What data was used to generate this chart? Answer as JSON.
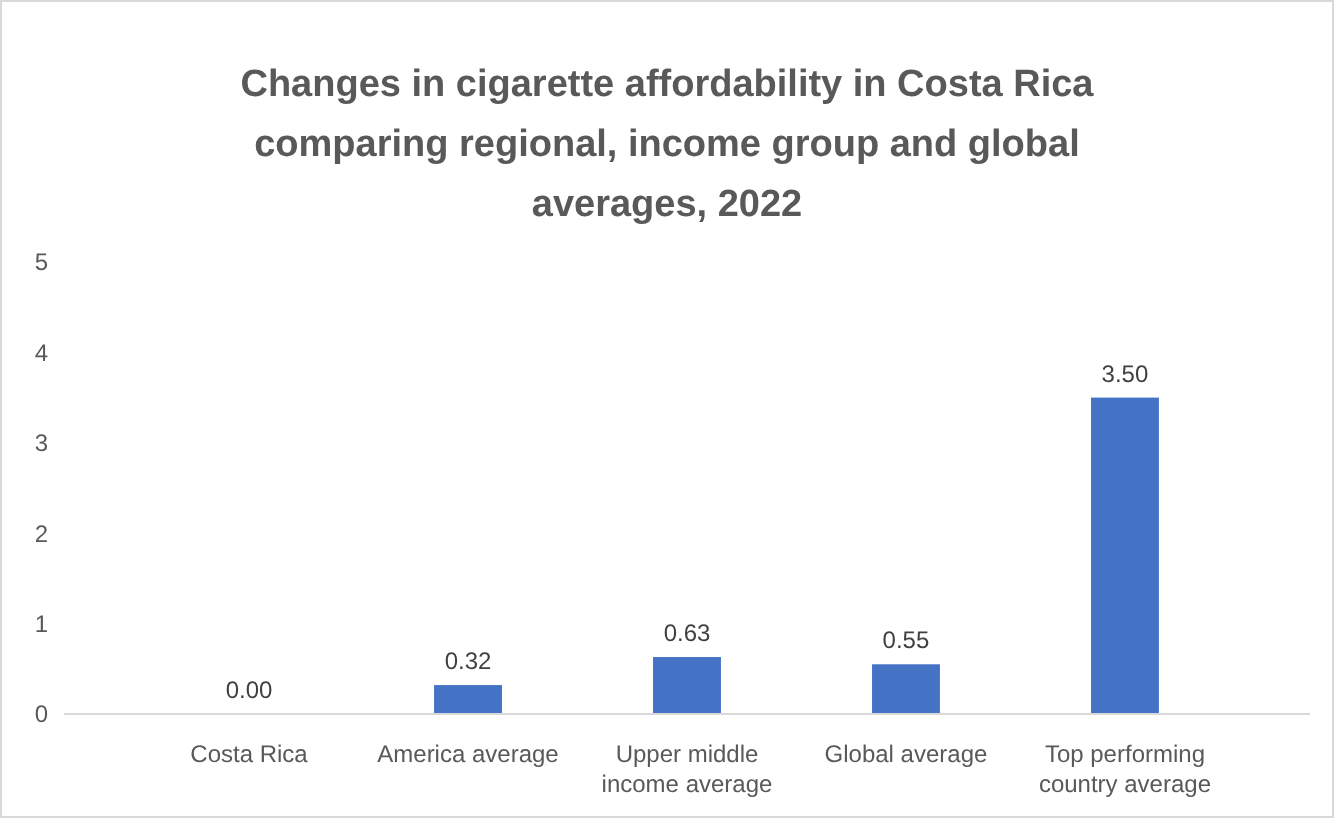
{
  "chart_data": {
    "type": "bar",
    "title": "Changes in cigarette affordability in Costa Rica comparing regional, income group and global averages, 2022",
    "categories": [
      "Costa Rica",
      "America average",
      "Upper middle income average",
      "Global average",
      "Top performing country average"
    ],
    "values": [
      0,
      0.32,
      0.63,
      0.55,
      3.5
    ],
    "value_labels": [
      "0.00",
      "0.32",
      "0.63",
      "0.55",
      "3.50"
    ],
    "color": "#4472c4",
    "ylim": [
      0,
      5
    ],
    "yticks": [
      0,
      1,
      2,
      3,
      4,
      5
    ],
    "grid": false
  }
}
